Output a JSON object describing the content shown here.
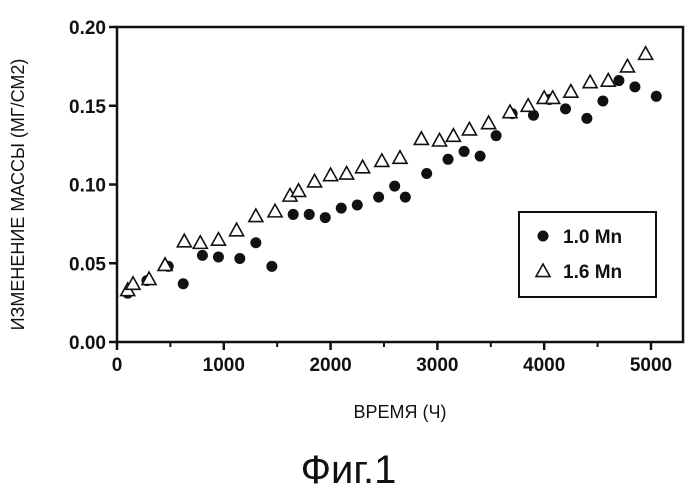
{
  "chart_data": {
    "type": "scatter",
    "title": "",
    "xlabel": "ВРЕМЯ (Ч)",
    "ylabel": "ИЗМЕНЕНИЕ МАССЫ (МГ/СМ2)",
    "xlim": [
      0,
      5300
    ],
    "ylim": [
      0.0,
      0.2
    ],
    "xticks": [
      0,
      1000,
      2000,
      3000,
      4000,
      5000
    ],
    "xtick_labels": [
      "0",
      "1000",
      "2000",
      "3000",
      "4000",
      "5000"
    ],
    "yticks": [
      0.0,
      0.05,
      0.1,
      0.15,
      0.2
    ],
    "ytick_labels": [
      "0.00",
      "0.05",
      "0.10",
      "0.15",
      "0.20"
    ],
    "grid": false,
    "legend_position": "bottom-right",
    "series": [
      {
        "name": "1.0 Mn",
        "marker": "filled-circle",
        "points": [
          [
            100,
            0.031
          ],
          [
            280,
            0.039
          ],
          [
            480,
            0.048
          ],
          [
            620,
            0.037
          ],
          [
            800,
            0.055
          ],
          [
            950,
            0.054
          ],
          [
            1150,
            0.053
          ],
          [
            1300,
            0.063
          ],
          [
            1450,
            0.048
          ],
          [
            1650,
            0.081
          ],
          [
            1800,
            0.081
          ],
          [
            1950,
            0.079
          ],
          [
            2100,
            0.085
          ],
          [
            2250,
            0.087
          ],
          [
            2450,
            0.092
          ],
          [
            2600,
            0.099
          ],
          [
            2700,
            0.092
          ],
          [
            2900,
            0.107
          ],
          [
            3100,
            0.116
          ],
          [
            3250,
            0.121
          ],
          [
            3400,
            0.118
          ],
          [
            3550,
            0.131
          ],
          [
            3700,
            0.145
          ],
          [
            3900,
            0.144
          ],
          [
            4050,
            0.154
          ],
          [
            4200,
            0.148
          ],
          [
            4400,
            0.142
          ],
          [
            4550,
            0.153
          ],
          [
            4700,
            0.166
          ],
          [
            4850,
            0.162
          ],
          [
            5050,
            0.156
          ]
        ]
      },
      {
        "name": "1.6 Mn",
        "marker": "open-triangle",
        "points": [
          [
            100,
            0.033
          ],
          [
            150,
            0.037
          ],
          [
            300,
            0.04
          ],
          [
            450,
            0.049
          ],
          [
            630,
            0.064
          ],
          [
            780,
            0.063
          ],
          [
            950,
            0.065
          ],
          [
            1120,
            0.071
          ],
          [
            1300,
            0.08
          ],
          [
            1480,
            0.083
          ],
          [
            1620,
            0.093
          ],
          [
            1700,
            0.096
          ],
          [
            1850,
            0.102
          ],
          [
            2000,
            0.106
          ],
          [
            2150,
            0.107
          ],
          [
            2300,
            0.111
          ],
          [
            2480,
            0.115
          ],
          [
            2650,
            0.117
          ],
          [
            2850,
            0.129
          ],
          [
            3020,
            0.128
          ],
          [
            3150,
            0.131
          ],
          [
            3300,
            0.135
          ],
          [
            3480,
            0.139
          ],
          [
            3680,
            0.146
          ],
          [
            3850,
            0.15
          ],
          [
            4000,
            0.155
          ],
          [
            4080,
            0.155
          ],
          [
            4250,
            0.159
          ],
          [
            4430,
            0.165
          ],
          [
            4600,
            0.166
          ],
          [
            4780,
            0.175
          ],
          [
            4950,
            0.183
          ]
        ]
      }
    ]
  },
  "figure": {
    "caption": "Фиг.1"
  }
}
